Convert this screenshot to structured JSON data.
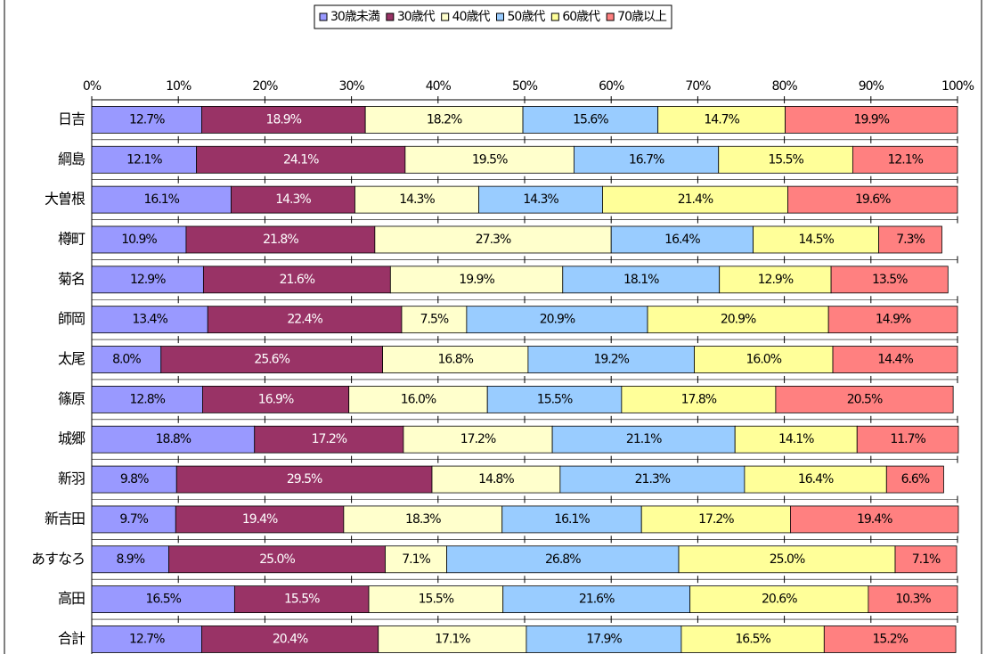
{
  "chart_data": {
    "type": "stacked_barh",
    "categories": [
      "日吉",
      "綱島",
      "大曽根",
      "樽町",
      "菊名",
      "師岡",
      "太尾",
      "篠原",
      "城郷",
      "新羽",
      "新吉田",
      "あすなろ",
      "高田",
      "合計"
    ],
    "series": [
      {
        "name": "30歳未満",
        "color": "#9999ff",
        "values": [
          12.7,
          12.1,
          16.1,
          10.9,
          12.9,
          13.4,
          8.0,
          12.8,
          18.8,
          9.8,
          9.7,
          8.9,
          16.5,
          12.7
        ],
        "value_labels": [
          "12.7%",
          "12.1%",
          "16.1%",
          "10.9%",
          "12.9%",
          "13.4%",
          "8.0%",
          "12.8%",
          "18.8%",
          "9.8%",
          "9.7%",
          "8.9%",
          "16.5%",
          "12.7%"
        ]
      },
      {
        "name": "30歳代",
        "color": "#993366",
        "values": [
          18.9,
          24.1,
          14.3,
          21.8,
          21.6,
          22.4,
          25.6,
          16.9,
          17.2,
          29.5,
          19.4,
          25.0,
          15.5,
          20.4
        ],
        "value_labels": [
          "18.9%",
          "24.1%",
          "14.3%",
          "21.8%",
          "21.6%",
          "22.4%",
          "25.6%",
          "16.9%",
          "17.2%",
          "29.5%",
          "19.4%",
          "25.0%",
          "15.5%",
          "20.4%"
        ]
      },
      {
        "name": "40歳代",
        "color": "#ffffcc",
        "values": [
          18.2,
          19.5,
          14.3,
          27.3,
          19.9,
          7.5,
          16.8,
          16.0,
          17.2,
          14.8,
          18.3,
          7.1,
          15.5,
          17.1
        ],
        "value_labels": [
          "18.2%",
          "19.5%",
          "14.3%",
          "27.3%",
          "19.9%",
          "7.5%",
          "16.8%",
          "16.0%",
          "17.2%",
          "14.8%",
          "18.3%",
          "7.1%",
          "15.5%",
          "17.1%"
        ]
      },
      {
        "name": "50歳代",
        "color": "#99ccff",
        "values": [
          15.6,
          16.7,
          14.3,
          16.4,
          18.1,
          20.9,
          19.2,
          15.5,
          21.1,
          21.3,
          16.1,
          26.8,
          21.6,
          17.9
        ],
        "value_labels": [
          "15.6%",
          "16.7%",
          "14.3%",
          "16.4%",
          "18.1%",
          "20.9%",
          "19.2%",
          "15.5%",
          "21.1%",
          "21.3%",
          "16.1%",
          "26.8%",
          "21.6%",
          "17.9%"
        ]
      },
      {
        "name": "60歳代",
        "color": "#ffff99",
        "values": [
          14.7,
          15.5,
          21.4,
          14.5,
          12.9,
          20.9,
          16.0,
          17.8,
          14.1,
          16.4,
          17.2,
          25.0,
          20.6,
          16.5
        ],
        "value_labels": [
          "14.7%",
          "15.5%",
          "21.4%",
          "14.5%",
          "12.9%",
          "20.9%",
          "16.0%",
          "17.8%",
          "14.1%",
          "16.4%",
          "17.2%",
          "25.0%",
          "20.6%",
          "16.5%"
        ]
      },
      {
        "name": "70歳以上",
        "color": "#ff8080",
        "values": [
          19.9,
          12.1,
          19.6,
          7.3,
          13.5,
          14.9,
          14.4,
          20.5,
          11.7,
          6.6,
          19.4,
          7.1,
          10.3,
          15.2
        ],
        "value_labels": [
          "19.9%",
          "12.1%",
          "19.6%",
          "7.3%",
          "13.5%",
          "14.9%",
          "14.4%",
          "20.5%",
          "11.7%",
          "6.6%",
          "19.4%",
          "7.1%",
          "10.3%",
          "15.2%"
        ]
      }
    ],
    "xlim": [
      0,
      100
    ],
    "xticks": [
      {
        "value": 0,
        "label": "0%"
      },
      {
        "value": 10,
        "label": "10%"
      },
      {
        "value": 20,
        "label": "20%"
      },
      {
        "value": 30,
        "label": "30%"
      },
      {
        "value": 40,
        "label": "40%"
      },
      {
        "value": 50,
        "label": "50%"
      },
      {
        "value": 60,
        "label": "60%"
      },
      {
        "value": 70,
        "label": "70%"
      },
      {
        "value": 80,
        "label": "80%"
      },
      {
        "value": 90,
        "label": "90%"
      },
      {
        "value": 100,
        "label": "100%"
      }
    ],
    "legend": "top"
  }
}
